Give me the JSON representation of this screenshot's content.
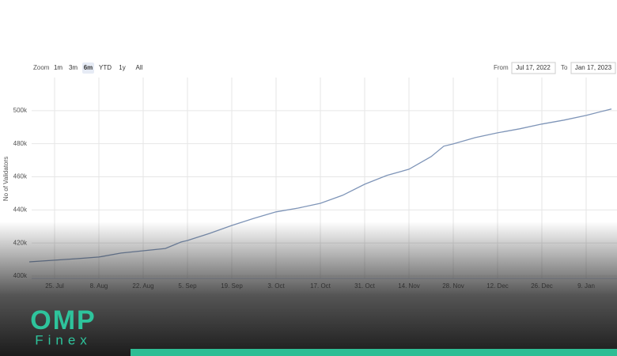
{
  "chart_data": {
    "type": "line",
    "y_axis_title": "No of Validators",
    "zoom_label": "Zoom",
    "zoom_buttons": [
      "1m",
      "3m",
      "6m",
      "YTD",
      "1y",
      "All"
    ],
    "zoom_selected": 2,
    "from_label": "From",
    "from_value": "Jul 17, 2022",
    "to_label": "To",
    "to_value": "Jan 17, 2023",
    "color": "#7f95b8",
    "grid": true,
    "x": [
      "2022-07-17",
      "2022-07-25",
      "2022-08-01",
      "2022-08-08",
      "2022-08-15",
      "2022-08-22",
      "2022-08-29",
      "2022-09-03",
      "2022-09-05",
      "2022-09-12",
      "2022-09-19",
      "2022-09-26",
      "2022-10-03",
      "2022-10-10",
      "2022-10-17",
      "2022-10-24",
      "2022-10-31",
      "2022-11-07",
      "2022-11-14",
      "2022-11-21",
      "2022-11-25",
      "2022-11-28",
      "2022-12-05",
      "2022-12-12",
      "2022-12-19",
      "2022-12-26",
      "2023-01-02",
      "2023-01-09",
      "2023-01-17"
    ],
    "values": [
      408600,
      409600,
      410500,
      411500,
      413900,
      415300,
      416700,
      420600,
      421500,
      425800,
      430600,
      434900,
      438800,
      441100,
      444000,
      448800,
      455500,
      460800,
      464600,
      472200,
      478500,
      479900,
      483700,
      486600,
      489000,
      491900,
      494300,
      497100,
      501000
    ],
    "xlim": [
      "2022-07-17",
      "2023-01-18"
    ],
    "xticks": [
      {
        "value": "2022-07-25",
        "label": "25. Jul"
      },
      {
        "value": "2022-08-08",
        "label": "8. Aug"
      },
      {
        "value": "2022-08-22",
        "label": "22. Aug"
      },
      {
        "value": "2022-09-05",
        "label": "5. Sep"
      },
      {
        "value": "2022-09-19",
        "label": "19. Sep"
      },
      {
        "value": "2022-10-03",
        "label": "3. Oct"
      },
      {
        "value": "2022-10-17",
        "label": "17. Oct"
      },
      {
        "value": "2022-10-31",
        "label": "31. Oct"
      },
      {
        "value": "2022-11-14",
        "label": "14. Nov"
      },
      {
        "value": "2022-11-28",
        "label": "28. Nov"
      },
      {
        "value": "2022-12-12",
        "label": "12. Dec"
      },
      {
        "value": "2022-12-26",
        "label": "26. Dec"
      },
      {
        "value": "2023-01-09",
        "label": "9. Jan"
      }
    ],
    "ylim": [
      400000,
      520000
    ],
    "yticks": [
      {
        "value": 400000,
        "label": "400k"
      },
      {
        "value": 420000,
        "label": "420k"
      },
      {
        "value": 440000,
        "label": "440k"
      },
      {
        "value": 460000,
        "label": "460k"
      },
      {
        "value": 480000,
        "label": "480k"
      },
      {
        "value": 500000,
        "label": "500k"
      }
    ]
  },
  "logo": {
    "top": "OMP",
    "bottom": "Finex"
  }
}
